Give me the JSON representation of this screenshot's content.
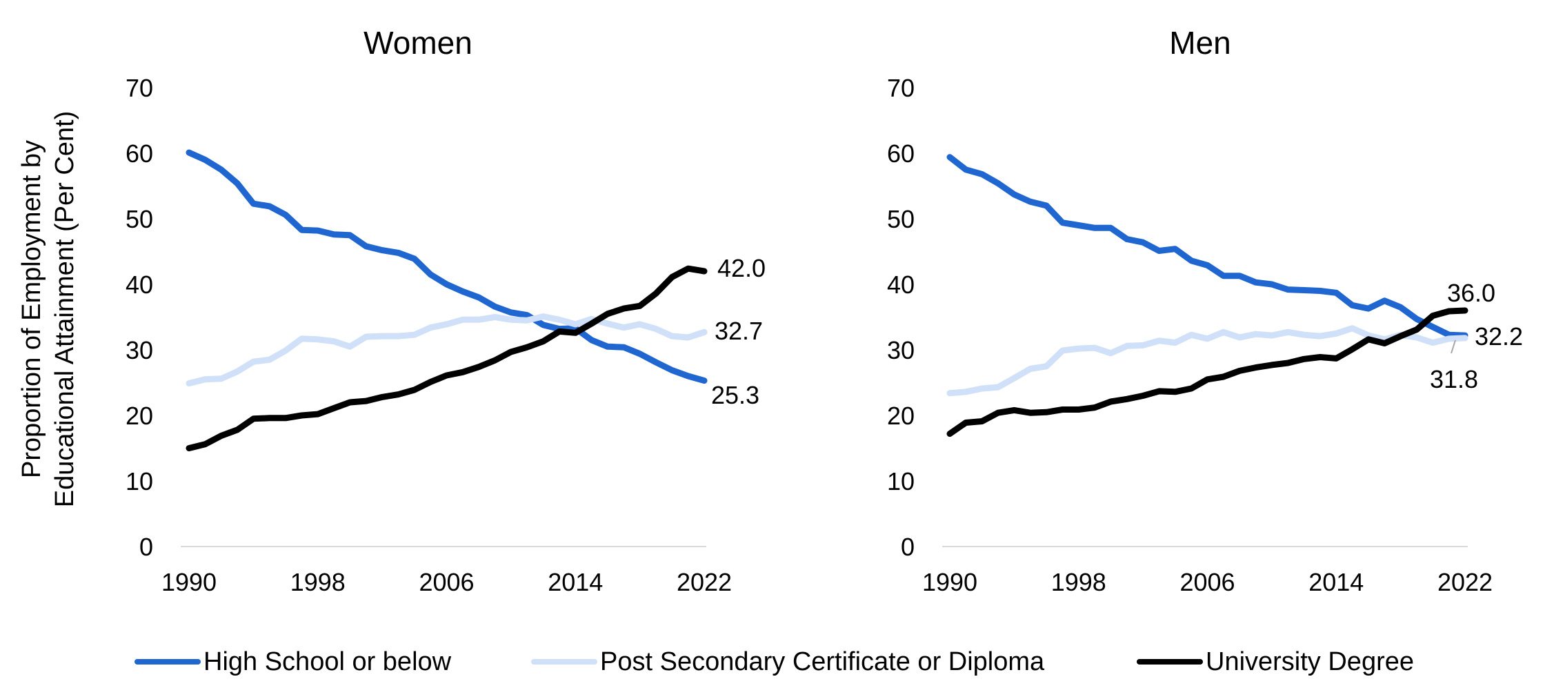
{
  "chart_data": [
    {
      "type": "line",
      "title": "Women",
      "ylabel": "Proportion of Employment by Educational Attainment (Per Cent)",
      "ylabel_lines": [
        "Proportion of Employment by",
        "Educational Attainment (Per Cent)"
      ],
      "ylim": [
        0,
        70
      ],
      "yticks": [
        0,
        10,
        20,
        30,
        40,
        50,
        60,
        70
      ],
      "xlim": [
        1990,
        2022
      ],
      "xticks": [
        1990,
        1998,
        2006,
        2014,
        2022
      ],
      "grid": false,
      "x": [
        1990,
        1991,
        1992,
        1993,
        1994,
        1995,
        1996,
        1997,
        1998,
        1999,
        2000,
        2001,
        2002,
        2003,
        2004,
        2005,
        2006,
        2007,
        2008,
        2009,
        2010,
        2011,
        2012,
        2013,
        2014,
        2015,
        2016,
        2017,
        2018,
        2019,
        2020,
        2021,
        2022
      ],
      "series": [
        {
          "name": "High School or below",
          "color": "#1f66d1",
          "values": [
            60.1,
            59.0,
            57.5,
            55.4,
            52.3,
            51.9,
            50.6,
            48.3,
            48.2,
            47.6,
            47.5,
            45.8,
            45.2,
            44.8,
            43.9,
            41.5,
            40.0,
            38.9,
            38.0,
            36.6,
            35.7,
            35.3,
            33.8,
            33.2,
            33.3,
            31.5,
            30.5,
            30.4,
            29.4,
            28.1,
            26.9,
            26.0,
            25.3
          ]
        },
        {
          "name": "Post Secondary Certificate or Diploma",
          "color": "#cfe0f8",
          "values": [
            24.9,
            25.5,
            25.6,
            26.7,
            28.2,
            28.5,
            29.9,
            31.7,
            31.6,
            31.3,
            30.5,
            32.0,
            32.1,
            32.1,
            32.3,
            33.4,
            33.9,
            34.6,
            34.6,
            35.0,
            34.6,
            34.5,
            35.1,
            34.6,
            33.9,
            34.7,
            34.0,
            33.4,
            33.9,
            33.2,
            32.1,
            31.9,
            32.7
          ]
        },
        {
          "name": "University Degree",
          "color": "#000000",
          "values": [
            15.0,
            15.6,
            16.9,
            17.8,
            19.5,
            19.6,
            19.6,
            20.0,
            20.2,
            21.1,
            22.0,
            22.2,
            22.8,
            23.2,
            23.9,
            25.1,
            26.1,
            26.6,
            27.4,
            28.4,
            29.7,
            30.4,
            31.3,
            32.8,
            32.6,
            34.0,
            35.5,
            36.3,
            36.7,
            38.6,
            41.1,
            42.4,
            42.0
          ]
        }
      ],
      "annotations": [
        {
          "text": "42.0",
          "series": "University Degree",
          "value": 42.0
        },
        {
          "text": "32.7",
          "series": "Post Secondary Certificate or Diploma",
          "value": 32.7
        },
        {
          "text": "25.3",
          "series": "High School or below",
          "value": 25.3
        }
      ]
    },
    {
      "type": "line",
      "title": "Men",
      "ylim": [
        0,
        70
      ],
      "yticks": [
        0,
        10,
        20,
        30,
        40,
        50,
        60,
        70
      ],
      "xlim": [
        1990,
        2022
      ],
      "xticks": [
        1990,
        1998,
        2006,
        2014,
        2022
      ],
      "grid": false,
      "x": [
        1990,
        1991,
        1992,
        1993,
        1994,
        1995,
        1996,
        1997,
        1998,
        1999,
        2000,
        2001,
        2002,
        2003,
        2004,
        2005,
        2006,
        2007,
        2008,
        2009,
        2010,
        2011,
        2012,
        2013,
        2014,
        2015,
        2016,
        2017,
        2018,
        2019,
        2020,
        2021,
        2022
      ],
      "series": [
        {
          "name": "High School or below",
          "color": "#1f66d1",
          "values": [
            59.4,
            57.5,
            56.8,
            55.4,
            53.7,
            52.6,
            52.0,
            49.4,
            49.0,
            48.6,
            48.6,
            46.9,
            46.4,
            45.1,
            45.4,
            43.6,
            42.9,
            41.3,
            41.3,
            40.3,
            40.0,
            39.2,
            39.1,
            39.0,
            38.7,
            36.8,
            36.3,
            37.5,
            36.5,
            34.7,
            33.5,
            32.3,
            32.2
          ]
        },
        {
          "name": "Post Secondary Certificate or Diploma",
          "color": "#cfe0f8",
          "values": [
            23.4,
            23.6,
            24.1,
            24.3,
            25.7,
            27.1,
            27.5,
            29.9,
            30.2,
            30.3,
            29.5,
            30.6,
            30.7,
            31.4,
            31.1,
            32.3,
            31.7,
            32.7,
            31.9,
            32.4,
            32.2,
            32.7,
            32.3,
            32.1,
            32.5,
            33.3,
            32.2,
            31.6,
            32.3,
            31.9,
            31.1,
            31.7,
            31.8
          ]
        },
        {
          "name": "University Degree",
          "color": "#000000",
          "values": [
            17.2,
            18.9,
            19.1,
            20.4,
            20.8,
            20.4,
            20.5,
            20.9,
            20.9,
            21.2,
            22.1,
            22.5,
            23.0,
            23.7,
            23.6,
            24.1,
            25.5,
            25.9,
            26.8,
            27.3,
            27.7,
            28.0,
            28.6,
            28.9,
            28.7,
            30.1,
            31.6,
            31.0,
            32.1,
            33.1,
            35.2,
            35.9,
            36.0
          ]
        }
      ],
      "annotations": [
        {
          "text": "36.0",
          "series": "University Degree",
          "value": 36.0
        },
        {
          "text": "32.2",
          "series": "High School or below",
          "value": 32.2
        },
        {
          "text": "31.8",
          "series": "Post Secondary Certificate or Diploma",
          "value": 31.8
        }
      ]
    }
  ],
  "legend": {
    "placement": "bottom",
    "items": [
      {
        "label": "High School or below",
        "color": "#1f66d1"
      },
      {
        "label": "Post Secondary Certificate or Diploma",
        "color": "#cfe0f8"
      },
      {
        "label": "University Degree",
        "color": "#000000"
      }
    ]
  }
}
